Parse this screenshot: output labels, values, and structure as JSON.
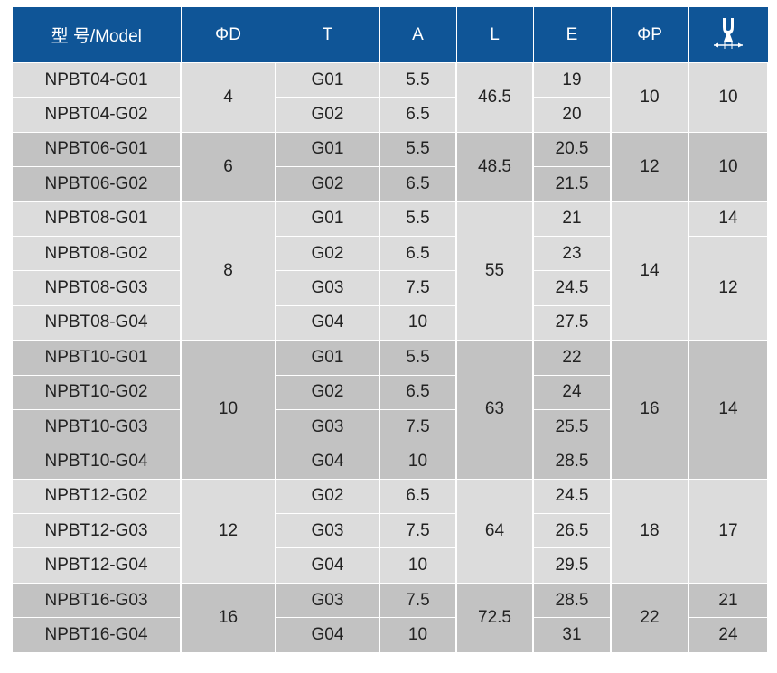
{
  "header": {
    "model": "型 号/Model",
    "d": "ΦD",
    "t": "T",
    "a": "A",
    "l": "L",
    "e": "E",
    "p": "ΦP",
    "wrench_icon": "hex-wrench-icon"
  },
  "colors": {
    "header": "#0f5597",
    "light": "#dcdcdc",
    "dark": "#c2c2c2"
  },
  "groups": [
    {
      "models": [
        "NPBT04-G01",
        "NPBT04-G02"
      ],
      "d": "4",
      "t": [
        "G01",
        "G02"
      ],
      "a": [
        "5.5",
        "6.5"
      ],
      "l": "46.5",
      "e": [
        "19",
        "20"
      ],
      "p": "10",
      "w": [
        [
          "10",
          2
        ]
      ]
    },
    {
      "models": [
        "NPBT06-G01",
        "NPBT06-G02"
      ],
      "d": "6",
      "t": [
        "G01",
        "G02"
      ],
      "a": [
        "5.5",
        "6.5"
      ],
      "l": "48.5",
      "e": [
        "20.5",
        "21.5"
      ],
      "p": "12",
      "w": [
        [
          "10",
          2
        ]
      ]
    },
    {
      "models": [
        "NPBT08-G01",
        "NPBT08-G02",
        "NPBT08-G03",
        "NPBT08-G04"
      ],
      "d": "8",
      "t": [
        "G01",
        "G02",
        "G03",
        "G04"
      ],
      "a": [
        "5.5",
        "6.5",
        "7.5",
        "10"
      ],
      "l": "55",
      "e": [
        "21",
        "23",
        "24.5",
        "27.5"
      ],
      "p": "14",
      "w": [
        [
          "14",
          1
        ],
        [
          "12",
          3
        ]
      ]
    },
    {
      "models": [
        "NPBT10-G01",
        "NPBT10-G02",
        "NPBT10-G03",
        "NPBT10-G04"
      ],
      "d": "10",
      "t": [
        "G01",
        "G02",
        "G03",
        "G04"
      ],
      "a": [
        "5.5",
        "6.5",
        "7.5",
        "10"
      ],
      "l": "63",
      "e": [
        "22",
        "24",
        "25.5",
        "28.5"
      ],
      "p": "16",
      "w": [
        [
          "14",
          4
        ]
      ]
    },
    {
      "models": [
        "NPBT12-G02",
        "NPBT12-G03",
        "NPBT12-G04"
      ],
      "d": "12",
      "t": [
        "G02",
        "G03",
        "G04"
      ],
      "a": [
        "6.5",
        "7.5",
        "10"
      ],
      "l": "64",
      "e": [
        "24.5",
        "26.5",
        "29.5"
      ],
      "p": "18",
      "w": [
        [
          "17",
          3
        ]
      ]
    },
    {
      "models": [
        "NPBT16-G03",
        "NPBT16-G04"
      ],
      "d": "16",
      "t": [
        "G03",
        "G04"
      ],
      "a": [
        "7.5",
        "10"
      ],
      "l": "72.5",
      "e": [
        "28.5",
        "31"
      ],
      "p": "22",
      "w": [
        [
          "21",
          1
        ],
        [
          "24",
          1
        ]
      ]
    }
  ]
}
